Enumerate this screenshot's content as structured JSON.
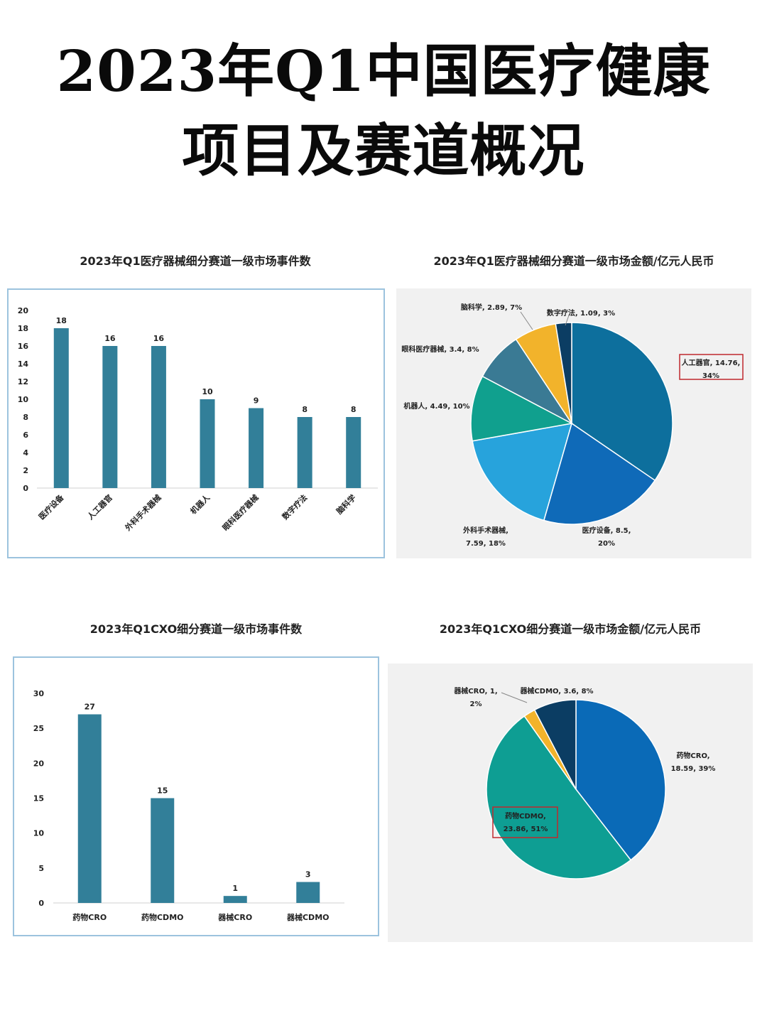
{
  "page": {
    "title_line_1": "2023年Q1中国医疗健康",
    "title_line_2": "项目及赛道概况"
  },
  "colors": {
    "bar": "#327f99",
    "pie": [
      "#0d6f9d",
      "#0f6ab8",
      "#27a3dc",
      "#10a08e",
      "#3a7a94",
      "#f2b32b",
      "#0b3d63"
    ],
    "cxo_pie": [
      "#0a6ab7",
      "#0e9e93",
      "#f2b32b",
      "#0b3d63"
    ],
    "highlight_box": "#c0282d"
  },
  "chart_data": [
    {
      "id": "device_events",
      "type": "bar",
      "title": "2023年Q1医疗器械细分赛道一级市场事件数",
      "categories": [
        "医疗设备",
        "人工器官",
        "外科手术器械",
        "机器人",
        "眼科医疗器械",
        "数字疗法",
        "脑科学"
      ],
      "values": [
        18,
        16,
        16,
        10,
        9,
        8,
        8
      ],
      "ylim": [
        0,
        20
      ],
      "yticks": [
        0,
        2,
        4,
        6,
        8,
        10,
        12,
        14,
        16,
        18,
        20
      ],
      "category_label_rotation": "diagonal",
      "grid": false
    },
    {
      "id": "device_amount",
      "type": "pie",
      "title": "2023年Q1医疗器械细分赛道一级市场金额/亿元人民币",
      "slices": [
        {
          "name": "人工器官",
          "value": 14.76,
          "pct": "34%",
          "label": [
            "人工器官, 14.76,",
            "34%"
          ],
          "highlight": true
        },
        {
          "name": "医疗设备",
          "value": 8.5,
          "pct": "20%",
          "label": [
            "医疗设备, 8.5,",
            "20%"
          ]
        },
        {
          "name": "外科手术器械",
          "value": 7.59,
          "pct": "18%",
          "label": [
            "外科手术器械,",
            "7.59, 18%"
          ]
        },
        {
          "name": "机器人",
          "value": 4.49,
          "pct": "10%",
          "label": [
            "机器人, 4.49, 10%"
          ]
        },
        {
          "name": "眼科医疗器械",
          "value": 3.4,
          "pct": "8%",
          "label": [
            "眼科医疗器械, 3.4, 8%"
          ]
        },
        {
          "name": "脑科学",
          "value": 2.89,
          "pct": "7%",
          "label": [
            "脑科学, 2.89, 7%"
          ]
        },
        {
          "name": "数字疗法",
          "value": 1.09,
          "pct": "3%",
          "label": [
            "数字疗法, 1.09, 3%"
          ]
        }
      ]
    },
    {
      "id": "cxo_events",
      "type": "bar",
      "title": "2023年Q1CXO细分赛道一级市场事件数",
      "categories": [
        "药物CRO",
        "药物CDMO",
        "器械CRO",
        "器械CDMO"
      ],
      "values": [
        27,
        15,
        1,
        3
      ],
      "ylim": [
        0,
        30
      ],
      "yticks": [
        0,
        5,
        10,
        15,
        20,
        25,
        30
      ],
      "grid": false
    },
    {
      "id": "cxo_amount",
      "type": "pie",
      "title": "2023年Q1CXO细分赛道一级市场金额/亿元人民币",
      "slices": [
        {
          "name": "药物CRO",
          "value": 18.59,
          "pct": "39%",
          "label": [
            "药物CRO,",
            "18.59, 39%"
          ]
        },
        {
          "name": "药物CDMO",
          "value": 23.86,
          "pct": "51%",
          "label": [
            "药物CDMO,",
            "23.86, 51%"
          ],
          "highlight": true
        },
        {
          "name": "器械CRO",
          "value": 1,
          "pct": "2%",
          "label": [
            "器械CRO, 1,",
            "2%"
          ]
        },
        {
          "name": "器械CDMO",
          "value": 3.6,
          "pct": "8%",
          "label": [
            "器械CDMO, 3.6, 8%"
          ]
        }
      ]
    }
  ]
}
